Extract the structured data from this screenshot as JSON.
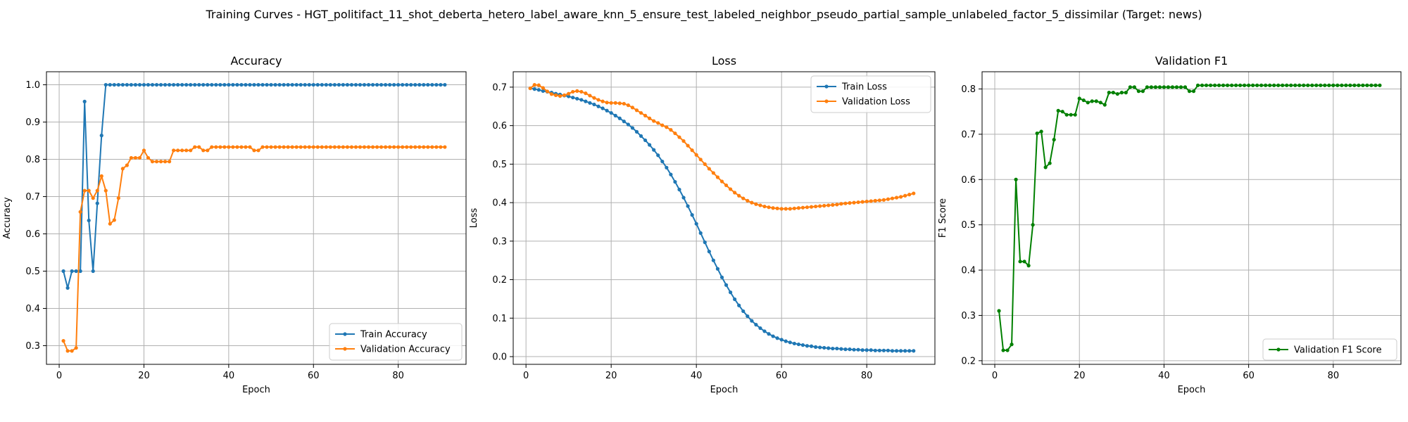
{
  "figure": {
    "suptitle": "Training Curves - HGT_politifact_11_shot_deberta_hetero_label_aware_knn_5_ensure_test_labeled_neighbor_pseudo_partial_sample_unlabeled_factor_5_dissimilar (Target: news)"
  },
  "chart_data": [
    {
      "type": "line",
      "title": "Accuracy",
      "xlabel": "Epoch",
      "ylabel": "Accuracy",
      "xlim": [
        -3,
        96
      ],
      "ylim": [
        0.25,
        1.035
      ],
      "xticks": [
        0,
        20,
        40,
        60,
        80
      ],
      "yticks": [
        0.3,
        0.4,
        0.5,
        0.6,
        0.7,
        0.8,
        0.9,
        1.0
      ],
      "ytick_format": 1,
      "grid": true,
      "legend_position": "lower-right",
      "series": [
        {
          "name": "Train Accuracy",
          "color": "#1f77b4",
          "x": [
            1,
            2,
            3,
            4,
            5,
            6,
            7,
            8,
            9,
            10,
            11,
            12,
            13,
            14,
            15,
            16,
            17,
            18,
            19,
            20,
            21,
            22,
            23,
            24,
            25,
            26,
            27,
            28,
            29,
            30,
            31,
            32,
            33,
            34,
            35,
            36,
            37,
            38,
            39,
            40,
            41,
            42,
            43,
            44,
            45,
            46,
            47,
            48,
            49,
            50,
            51,
            52,
            53,
            54,
            55,
            56,
            57,
            58,
            59,
            60,
            61,
            62,
            63,
            64,
            65,
            66,
            67,
            68,
            69,
            70,
            71,
            72,
            73,
            74,
            75,
            76,
            77,
            78,
            79,
            80,
            81,
            82,
            83,
            84,
            85,
            86,
            87,
            88,
            89,
            90,
            91
          ],
          "values": [
            0.5,
            0.455,
            0.5,
            0.5,
            0.5,
            0.955,
            0.636,
            0.5,
            0.682,
            0.864,
            1,
            1,
            1,
            1,
            1,
            1,
            1,
            1,
            1,
            1,
            1,
            1,
            1,
            1,
            1,
            1,
            1,
            1,
            1,
            1,
            1,
            1,
            1,
            1,
            1,
            1,
            1,
            1,
            1,
            1,
            1,
            1,
            1,
            1,
            1,
            1,
            1,
            1,
            1,
            1,
            1,
            1,
            1,
            1,
            1,
            1,
            1,
            1,
            1,
            1,
            1,
            1,
            1,
            1,
            1,
            1,
            1,
            1,
            1,
            1,
            1,
            1,
            1,
            1,
            1,
            1,
            1,
            1,
            1,
            1,
            1,
            1,
            1,
            1,
            1,
            1,
            1,
            1,
            1,
            1,
            1
          ]
        },
        {
          "name": "Validation Accuracy",
          "color": "#ff7f0e",
          "x": [
            1,
            2,
            3,
            4,
            5,
            6,
            7,
            8,
            9,
            10,
            11,
            12,
            13,
            14,
            15,
            16,
            17,
            18,
            19,
            20,
            21,
            22,
            23,
            24,
            25,
            26,
            27,
            28,
            29,
            30,
            31,
            32,
            33,
            34,
            35,
            36,
            37,
            38,
            39,
            40,
            41,
            42,
            43,
            44,
            45,
            46,
            47,
            48,
            49,
            50,
            51,
            52,
            53,
            54,
            55,
            56,
            57,
            58,
            59,
            60,
            61,
            62,
            63,
            64,
            65,
            66,
            67,
            68,
            69,
            70,
            71,
            72,
            73,
            74,
            75,
            76,
            77,
            78,
            79,
            80,
            81,
            82,
            83,
            84,
            85,
            86,
            87,
            88,
            89,
            90,
            91
          ],
          "values": [
            0.313,
            0.286,
            0.286,
            0.294,
            0.659,
            0.716,
            0.716,
            0.696,
            0.716,
            0.755,
            0.716,
            0.627,
            0.637,
            0.696,
            0.775,
            0.784,
            0.804,
            0.804,
            0.804,
            0.824,
            0.804,
            0.794,
            0.794,
            0.794,
            0.794,
            0.794,
            0.824,
            0.824,
            0.824,
            0.824,
            0.824,
            0.833,
            0.833,
            0.824,
            0.824,
            0.833,
            0.833,
            0.833,
            0.833,
            0.833,
            0.833,
            0.833,
            0.833,
            0.833,
            0.833,
            0.824,
            0.824,
            0.833,
            0.833,
            0.833,
            0.833,
            0.833,
            0.833,
            0.833,
            0.833,
            0.833,
            0.833,
            0.833,
            0.833,
            0.833,
            0.833,
            0.833,
            0.833,
            0.833,
            0.833,
            0.833,
            0.833,
            0.833,
            0.833,
            0.833,
            0.833,
            0.833,
            0.833,
            0.833,
            0.833,
            0.833,
            0.833,
            0.833,
            0.833,
            0.833,
            0.833,
            0.833,
            0.833,
            0.833,
            0.833,
            0.833,
            0.833,
            0.833,
            0.833,
            0.833,
            0.833
          ]
        }
      ]
    },
    {
      "type": "line",
      "title": "Loss",
      "xlabel": "Epoch",
      "ylabel": "Loss",
      "xlim": [
        -3,
        96
      ],
      "ylim": [
        -0.02,
        0.74
      ],
      "xticks": [
        0,
        20,
        40,
        60,
        80
      ],
      "yticks": [
        0.0,
        0.1,
        0.2,
        0.3,
        0.4,
        0.5,
        0.6,
        0.7
      ],
      "ytick_format": 1,
      "grid": true,
      "legend_position": "upper-right",
      "series": [
        {
          "name": "Train Loss",
          "color": "#1f77b4",
          "x": [
            1,
            2,
            3,
            4,
            5,
            6,
            7,
            8,
            9,
            10,
            11,
            12,
            13,
            14,
            15,
            16,
            17,
            18,
            19,
            20,
            21,
            22,
            23,
            24,
            25,
            26,
            27,
            28,
            29,
            30,
            31,
            32,
            33,
            34,
            35,
            36,
            37,
            38,
            39,
            40,
            41,
            42,
            43,
            44,
            45,
            46,
            47,
            48,
            49,
            50,
            51,
            52,
            53,
            54,
            55,
            56,
            57,
            58,
            59,
            60,
            61,
            62,
            63,
            64,
            65,
            66,
            67,
            68,
            69,
            70,
            71,
            72,
            73,
            74,
            75,
            76,
            77,
            78,
            79,
            80,
            81,
            82,
            83,
            84,
            85,
            86,
            87,
            88,
            89,
            90,
            91
          ],
          "values": [
            0.697,
            0.695,
            0.693,
            0.69,
            0.688,
            0.686,
            0.683,
            0.681,
            0.678,
            0.676,
            0.673,
            0.67,
            0.667,
            0.663,
            0.659,
            0.655,
            0.65,
            0.645,
            0.639,
            0.633,
            0.626,
            0.619,
            0.611,
            0.603,
            0.594,
            0.584,
            0.573,
            0.562,
            0.55,
            0.537,
            0.523,
            0.507,
            0.491,
            0.473,
            0.454,
            0.434,
            0.413,
            0.391,
            0.368,
            0.345,
            0.321,
            0.297,
            0.273,
            0.25,
            0.228,
            0.206,
            0.186,
            0.167,
            0.149,
            0.133,
            0.118,
            0.105,
            0.093,
            0.083,
            0.074,
            0.066,
            0.059,
            0.053,
            0.048,
            0.044,
            0.04,
            0.037,
            0.034,
            0.032,
            0.03,
            0.028,
            0.027,
            0.025,
            0.024,
            0.023,
            0.022,
            0.021,
            0.021,
            0.02,
            0.019,
            0.019,
            0.018,
            0.018,
            0.017,
            0.017,
            0.017,
            0.016,
            0.016,
            0.016,
            0.016,
            0.015,
            0.015,
            0.015,
            0.015,
            0.015,
            0.015
          ]
        },
        {
          "name": "Validation Loss",
          "color": "#ff7f0e",
          "x": [
            1,
            2,
            3,
            4,
            5,
            6,
            7,
            8,
            9,
            10,
            11,
            12,
            13,
            14,
            15,
            16,
            17,
            18,
            19,
            20,
            21,
            22,
            23,
            24,
            25,
            26,
            27,
            28,
            29,
            30,
            31,
            32,
            33,
            34,
            35,
            36,
            37,
            38,
            39,
            40,
            41,
            42,
            43,
            44,
            45,
            46,
            47,
            48,
            49,
            50,
            51,
            52,
            53,
            54,
            55,
            56,
            57,
            58,
            59,
            60,
            61,
            62,
            63,
            64,
            65,
            66,
            67,
            68,
            69,
            70,
            71,
            72,
            73,
            74,
            75,
            76,
            77,
            78,
            79,
            80,
            81,
            82,
            83,
            84,
            85,
            86,
            87,
            88,
            89,
            90,
            91
          ],
          "values": [
            0.697,
            0.706,
            0.705,
            0.698,
            0.689,
            0.682,
            0.679,
            0.677,
            0.679,
            0.683,
            0.688,
            0.69,
            0.688,
            0.684,
            0.678,
            0.672,
            0.667,
            0.663,
            0.66,
            0.659,
            0.659,
            0.658,
            0.657,
            0.653,
            0.647,
            0.64,
            0.633,
            0.626,
            0.619,
            0.612,
            0.607,
            0.601,
            0.596,
            0.589,
            0.58,
            0.57,
            0.56,
            0.548,
            0.536,
            0.524,
            0.512,
            0.5,
            0.488,
            0.477,
            0.466,
            0.455,
            0.445,
            0.435,
            0.426,
            0.418,
            0.411,
            0.405,
            0.4,
            0.396,
            0.393,
            0.39,
            0.388,
            0.386,
            0.385,
            0.384,
            0.384,
            0.384,
            0.385,
            0.386,
            0.387,
            0.388,
            0.389,
            0.39,
            0.391,
            0.392,
            0.393,
            0.394,
            0.395,
            0.397,
            0.398,
            0.399,
            0.4,
            0.401,
            0.402,
            0.403,
            0.404,
            0.405,
            0.406,
            0.407,
            0.409,
            0.411,
            0.413,
            0.415,
            0.418,
            0.421,
            0.424
          ]
        }
      ]
    },
    {
      "type": "line",
      "title": "Validation F1",
      "xlabel": "Epoch",
      "ylabel": "F1 Score",
      "xlim": [
        -3,
        96
      ],
      "ylim": [
        0.192,
        0.838
      ],
      "xticks": [
        0,
        20,
        40,
        60,
        80
      ],
      "yticks": [
        0.2,
        0.3,
        0.4,
        0.5,
        0.6,
        0.7,
        0.8
      ],
      "ytick_format": 1,
      "grid": true,
      "legend_position": "lower-right",
      "series": [
        {
          "name": "Validation F1 Score",
          "color": "#008000",
          "x": [
            1,
            2,
            3,
            4,
            5,
            6,
            7,
            8,
            9,
            10,
            11,
            12,
            13,
            14,
            15,
            16,
            17,
            18,
            19,
            20,
            21,
            22,
            23,
            24,
            25,
            26,
            27,
            28,
            29,
            30,
            31,
            32,
            33,
            34,
            35,
            36,
            37,
            38,
            39,
            40,
            41,
            42,
            43,
            44,
            45,
            46,
            47,
            48,
            49,
            50,
            51,
            52,
            53,
            54,
            55,
            56,
            57,
            58,
            59,
            60,
            61,
            62,
            63,
            64,
            65,
            66,
            67,
            68,
            69,
            70,
            71,
            72,
            73,
            74,
            75,
            76,
            77,
            78,
            79,
            80,
            81,
            82,
            83,
            84,
            85,
            86,
            87,
            88,
            89,
            90,
            91
          ],
          "values": [
            0.31,
            0.223,
            0.223,
            0.236,
            0.6,
            0.419,
            0.419,
            0.41,
            0.5,
            0.702,
            0.706,
            0.627,
            0.636,
            0.688,
            0.752,
            0.75,
            0.743,
            0.743,
            0.743,
            0.779,
            0.775,
            0.77,
            0.773,
            0.773,
            0.77,
            0.765,
            0.792,
            0.792,
            0.789,
            0.792,
            0.792,
            0.804,
            0.804,
            0.795,
            0.795,
            0.804,
            0.804,
            0.804,
            0.804,
            0.804,
            0.804,
            0.804,
            0.804,
            0.804,
            0.804,
            0.795,
            0.795,
            0.808,
            0.808,
            0.808,
            0.808,
            0.808,
            0.808,
            0.808,
            0.808,
            0.808,
            0.808,
            0.808,
            0.808,
            0.808,
            0.808,
            0.808,
            0.808,
            0.808,
            0.808,
            0.808,
            0.808,
            0.808,
            0.808,
            0.808,
            0.808,
            0.808,
            0.808,
            0.808,
            0.808,
            0.808,
            0.808,
            0.808,
            0.808,
            0.808,
            0.808,
            0.808,
            0.808,
            0.808,
            0.808,
            0.808,
            0.808,
            0.808,
            0.808,
            0.808,
            0.808
          ]
        }
      ]
    }
  ]
}
